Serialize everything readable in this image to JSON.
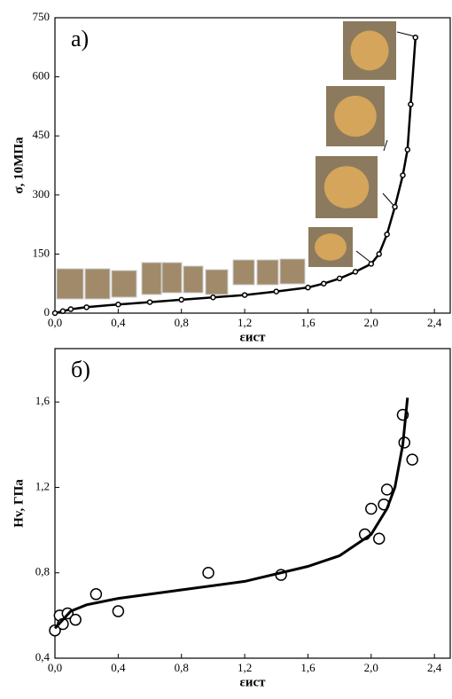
{
  "chart_data": [
    {
      "type": "line",
      "label": "а)",
      "x_label": "εист",
      "y_label": "σ, 10МПа",
      "xlim": [
        0,
        2.5
      ],
      "ylim": [
        0,
        750
      ],
      "xticks": [
        {
          "value": 0,
          "label": "0,0"
        },
        {
          "value": 0.4,
          "label": "0,4"
        },
        {
          "value": 0.8,
          "label": "0,8"
        },
        {
          "value": 1.2,
          "label": "1,2"
        },
        {
          "value": 1.6,
          "label": "1,6"
        },
        {
          "value": 2.0,
          "label": "2,0"
        },
        {
          "value": 2.4,
          "label": "2,4"
        }
      ],
      "yticks": [
        0,
        150,
        300,
        450,
        600,
        750
      ],
      "series": [
        {
          "color": "#000000",
          "line": true,
          "markers": true,
          "x": [
            0,
            0.05,
            0.1,
            0.2,
            0.4,
            0.6,
            0.8,
            1.0,
            1.2,
            1.4,
            1.6,
            1.7,
            1.8,
            1.9,
            2.0,
            2.05,
            2.1,
            2.15,
            2.2,
            2.23,
            2.25,
            2.28
          ],
          "values": [
            0,
            5,
            10,
            15,
            22,
            28,
            34,
            40,
            46,
            55,
            65,
            75,
            88,
            105,
            125,
            150,
            200,
            270,
            350,
            415,
            530,
            700
          ]
        }
      ]
    },
    {
      "type": "line",
      "label": "б)",
      "x_label": "εист",
      "y_label": "Hv, ГПа",
      "xlim": [
        0,
        2.5
      ],
      "ylim": [
        0.4,
        1.85
      ],
      "xticks": [
        {
          "value": 0,
          "label": "0,0"
        },
        {
          "value": 0.4,
          "label": "0,4"
        },
        {
          "value": 0.8,
          "label": "0,8"
        },
        {
          "value": 1.2,
          "label": "1,2"
        },
        {
          "value": 1.6,
          "label": "1,6"
        },
        {
          "value": 2.0,
          "label": "2,0"
        },
        {
          "value": 2.4,
          "label": "2,4"
        }
      ],
      "yticks": [
        {
          "value": 0.4,
          "label": "0,4"
        },
        {
          "value": 0.8,
          "label": "0,8"
        },
        {
          "value": 1.2,
          "label": "1,2"
        },
        {
          "value": 1.6,
          "label": "1,6"
        }
      ],
      "series": [
        {
          "color": "#000000",
          "line": false,
          "markers": true,
          "x": [
            0.0,
            0.03,
            0.05,
            0.08,
            0.13,
            0.26,
            0.4,
            0.97,
            1.43,
            1.96,
            2.0,
            2.05,
            2.08,
            2.1,
            2.2,
            2.21,
            2.26
          ],
          "values": [
            0.53,
            0.6,
            0.56,
            0.61,
            0.58,
            0.7,
            0.62,
            0.8,
            0.79,
            0.98,
            1.1,
            0.96,
            1.12,
            1.19,
            1.54,
            1.41,
            1.33
          ]
        },
        {
          "color": "#000000",
          "line": true,
          "markers": false,
          "x": [
            0,
            0.1,
            0.2,
            0.4,
            0.8,
            1.2,
            1.6,
            1.8,
            2.0,
            2.1,
            2.15,
            2.2,
            2.23
          ],
          "values": [
            0.54,
            0.62,
            0.65,
            0.68,
            0.72,
            0.76,
            0.83,
            0.88,
            0.98,
            1.1,
            1.2,
            1.4,
            1.62
          ]
        }
      ]
    }
  ]
}
